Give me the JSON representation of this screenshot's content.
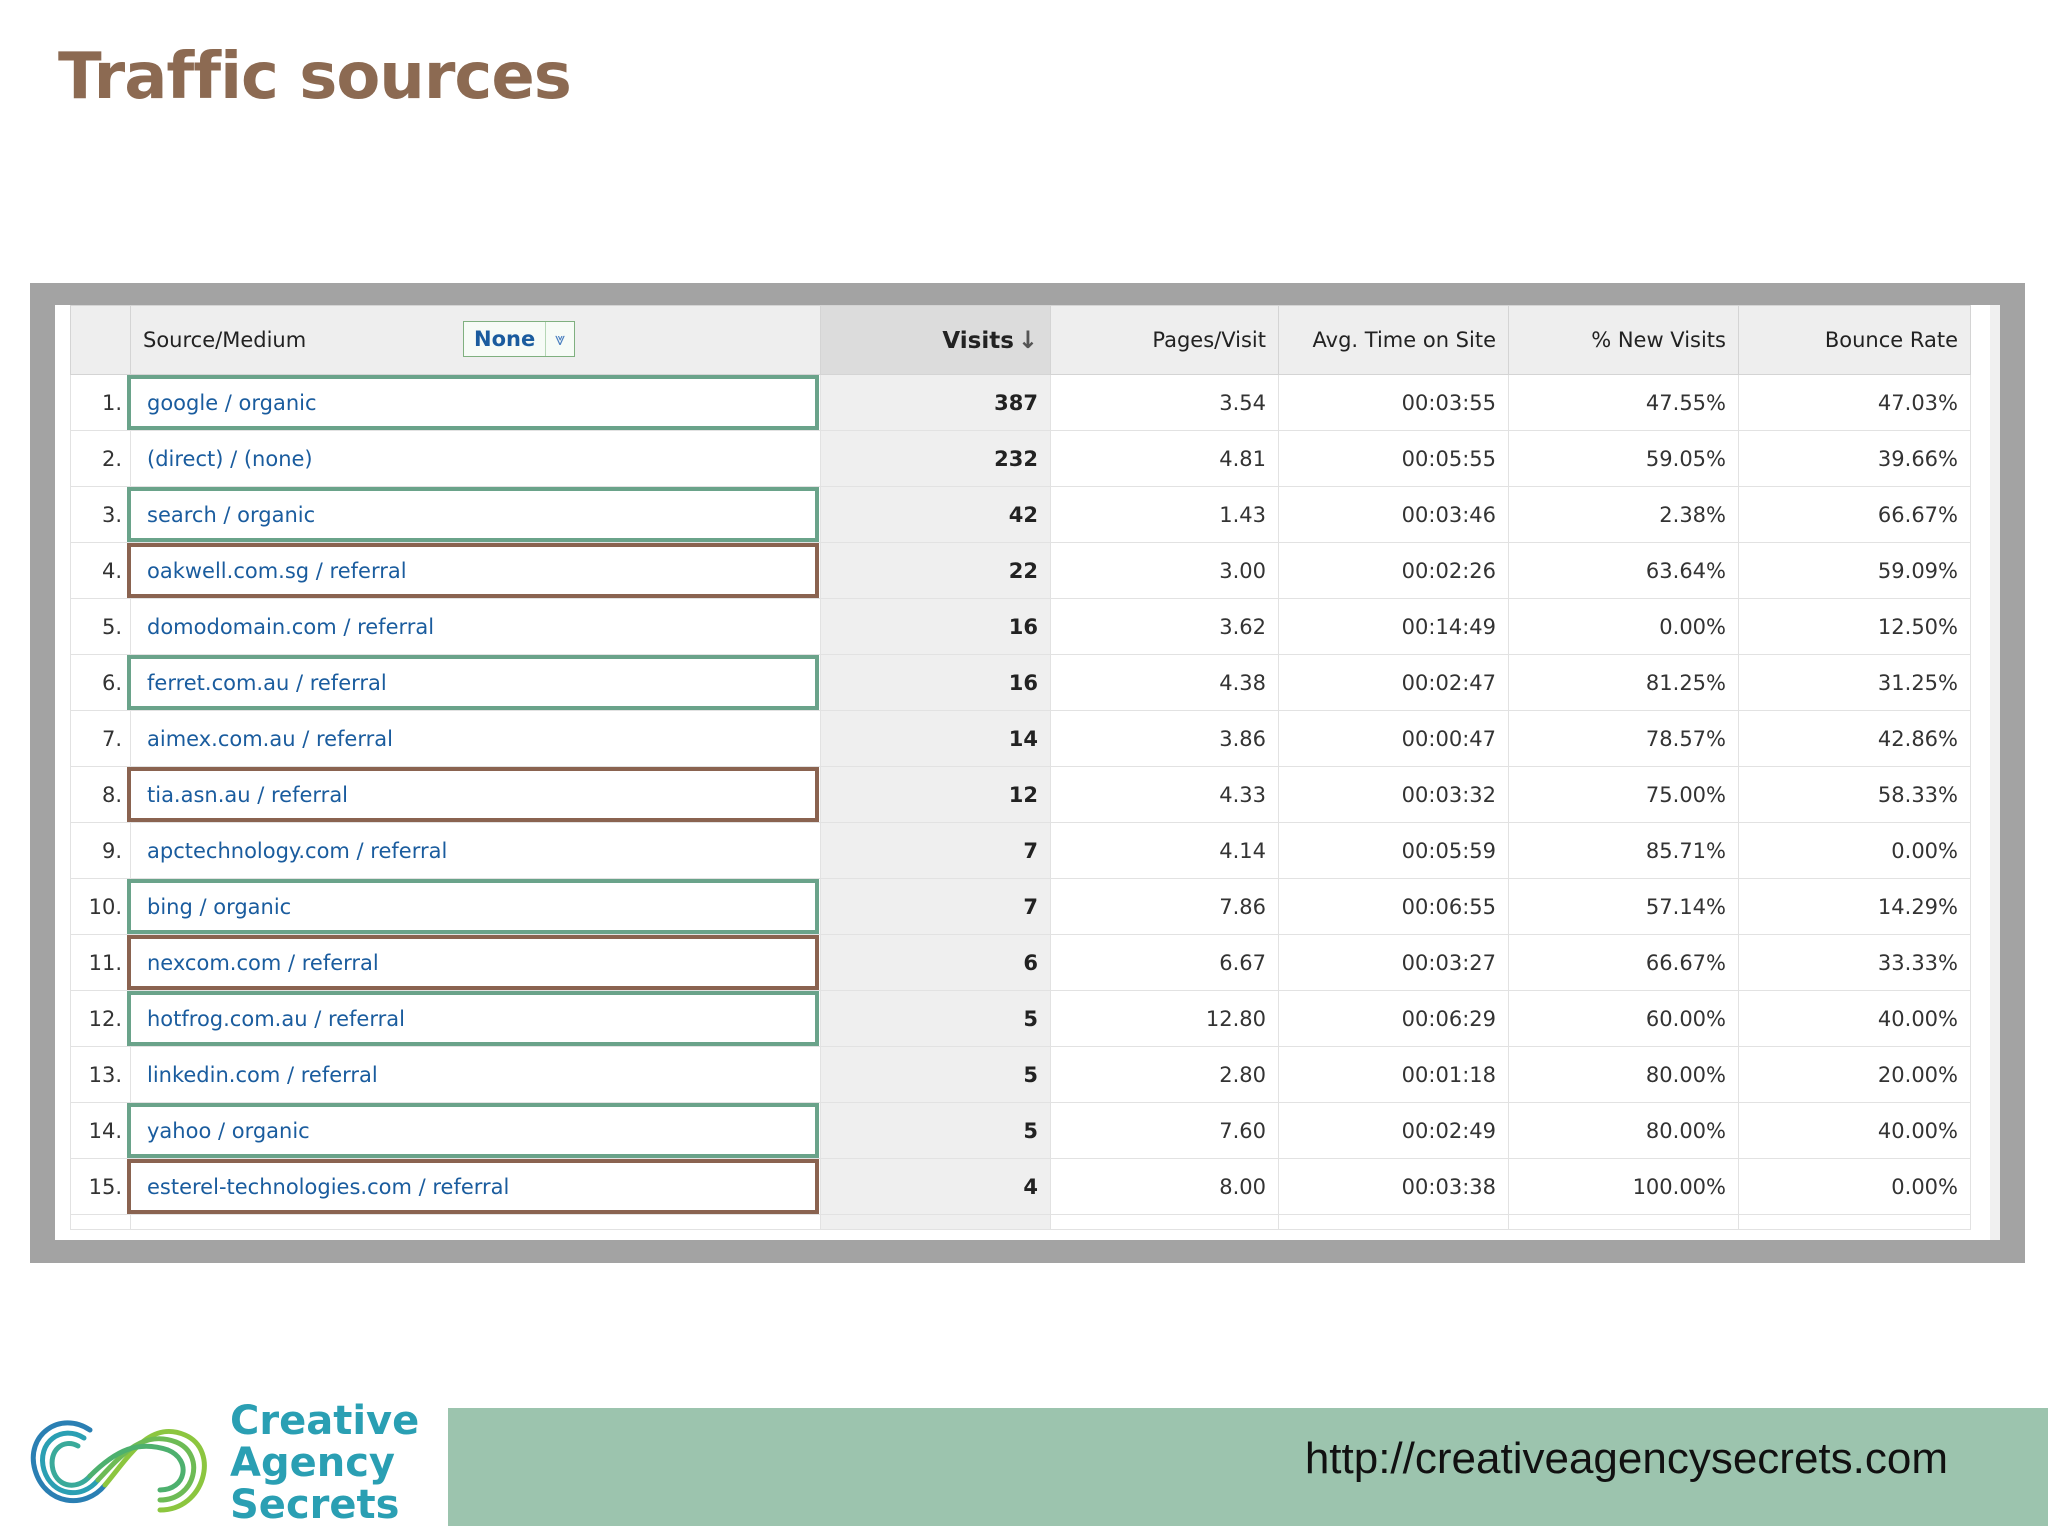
{
  "slide": {
    "title": "Traffic sources"
  },
  "table": {
    "headers": {
      "source_medium": "Source/Medium",
      "secondary_dimension": "None",
      "visits": "Visits",
      "pages_visit": "Pages/Visit",
      "avg_time": "Avg. Time on Site",
      "new_visits": "% New Visits",
      "bounce_rate": "Bounce Rate"
    },
    "rows": [
      {
        "index": "1.",
        "source": "google / organic",
        "visits": "387",
        "pages": "3.54",
        "time": "00:03:55",
        "new": "47.55%",
        "bounce": "47.03%",
        "highlight": "green"
      },
      {
        "index": "2.",
        "source": "(direct) / (none)",
        "visits": "232",
        "pages": "4.81",
        "time": "00:05:55",
        "new": "59.05%",
        "bounce": "39.66%",
        "highlight": ""
      },
      {
        "index": "3.",
        "source": "search / organic",
        "visits": "42",
        "pages": "1.43",
        "time": "00:03:46",
        "new": "2.38%",
        "bounce": "66.67%",
        "highlight": "green"
      },
      {
        "index": "4.",
        "source": "oakwell.com.sg / referral",
        "visits": "22",
        "pages": "3.00",
        "time": "00:02:26",
        "new": "63.64%",
        "bounce": "59.09%",
        "highlight": "brown"
      },
      {
        "index": "5.",
        "source": "domodomain.com / referral",
        "visits": "16",
        "pages": "3.62",
        "time": "00:14:49",
        "new": "0.00%",
        "bounce": "12.50%",
        "highlight": ""
      },
      {
        "index": "6.",
        "source": "ferret.com.au / referral",
        "visits": "16",
        "pages": "4.38",
        "time": "00:02:47",
        "new": "81.25%",
        "bounce": "31.25%",
        "highlight": "green"
      },
      {
        "index": "7.",
        "source": "aimex.com.au / referral",
        "visits": "14",
        "pages": "3.86",
        "time": "00:00:47",
        "new": "78.57%",
        "bounce": "42.86%",
        "highlight": ""
      },
      {
        "index": "8.",
        "source": "tia.asn.au / referral",
        "visits": "12",
        "pages": "4.33",
        "time": "00:03:32",
        "new": "75.00%",
        "bounce": "58.33%",
        "highlight": "brown"
      },
      {
        "index": "9.",
        "source": "apctechnology.com / referral",
        "visits": "7",
        "pages": "4.14",
        "time": "00:05:59",
        "new": "85.71%",
        "bounce": "0.00%",
        "highlight": ""
      },
      {
        "index": "10.",
        "source": "bing / organic",
        "visits": "7",
        "pages": "7.86",
        "time": "00:06:55",
        "new": "57.14%",
        "bounce": "14.29%",
        "highlight": "green"
      },
      {
        "index": "11.",
        "source": "nexcom.com / referral",
        "visits": "6",
        "pages": "6.67",
        "time": "00:03:27",
        "new": "66.67%",
        "bounce": "33.33%",
        "highlight": "brown"
      },
      {
        "index": "12.",
        "source": "hotfrog.com.au / referral",
        "visits": "5",
        "pages": "12.80",
        "time": "00:06:29",
        "new": "60.00%",
        "bounce": "40.00%",
        "highlight": "green"
      },
      {
        "index": "13.",
        "source": "linkedin.com / referral",
        "visits": "5",
        "pages": "2.80",
        "time": "00:01:18",
        "new": "80.00%",
        "bounce": "20.00%",
        "highlight": ""
      },
      {
        "index": "14.",
        "source": "yahoo / organic",
        "visits": "5",
        "pages": "7.60",
        "time": "00:02:49",
        "new": "80.00%",
        "bounce": "40.00%",
        "highlight": "green"
      },
      {
        "index": "15.",
        "source": "esterel-technologies.com / referral",
        "visits": "4",
        "pages": "8.00",
        "time": "00:03:38",
        "new": "100.00%",
        "bounce": "0.00%",
        "highlight": "brown"
      }
    ]
  },
  "colors": {
    "title": "#8c6a52",
    "link": "#1a5c9e",
    "highlight_green": "#6aa38a",
    "highlight_brown": "#8a6350",
    "footer_band": "#9cc4ae",
    "logo": "#2a9fb3"
  },
  "footer": {
    "url": "http://creativeagencysecrets.com",
    "logo": {
      "line1": "Creative",
      "line2": "Agency",
      "line3": "Secrets"
    }
  }
}
